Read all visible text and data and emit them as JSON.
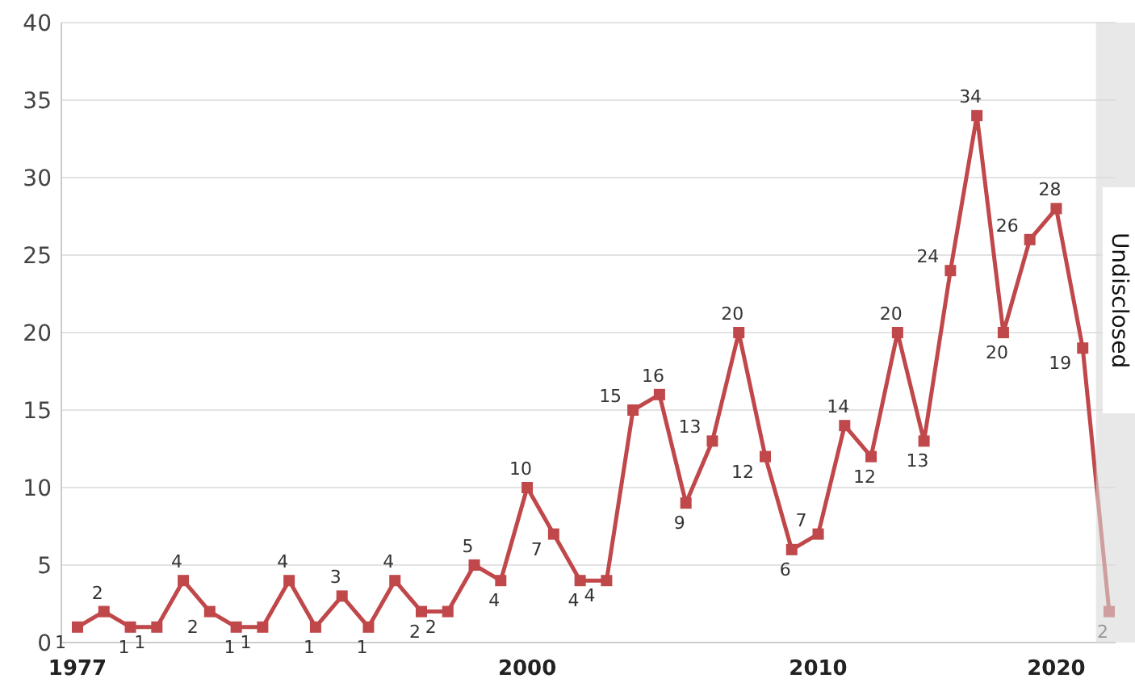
{
  "chart_data": {
    "type": "line",
    "categories": [
      "1977",
      null,
      null,
      null,
      null,
      null,
      null,
      null,
      null,
      null,
      null,
      null,
      null,
      null,
      null,
      null,
      null,
      "2000",
      null,
      null,
      null,
      null,
      null,
      null,
      null,
      null,
      null,
      null,
      "2010",
      null,
      null,
      null,
      null,
      null,
      null,
      null,
      null,
      "2020",
      null,
      null
    ],
    "series": [
      {
        "color": "#c0474a",
        "values": [
          1,
          2,
          1,
          1,
          4,
          2,
          1,
          1,
          4,
          1,
          3,
          1,
          4,
          2,
          2,
          5,
          4,
          10,
          7,
          4,
          4,
          15,
          16,
          9,
          13,
          20,
          12,
          6,
          7,
          14,
          12,
          20,
          13,
          24,
          34,
          20,
          26,
          28,
          19,
          2
        ]
      }
    ],
    "ylim": [
      0,
      40
    ],
    "yticks": [
      0,
      5,
      10,
      15,
      20,
      25,
      30,
      35,
      40
    ],
    "grid": "y",
    "marker": "square",
    "line_style": "solid",
    "data_labels": true,
    "annotations": [
      "Undisclosed"
    ]
  }
}
